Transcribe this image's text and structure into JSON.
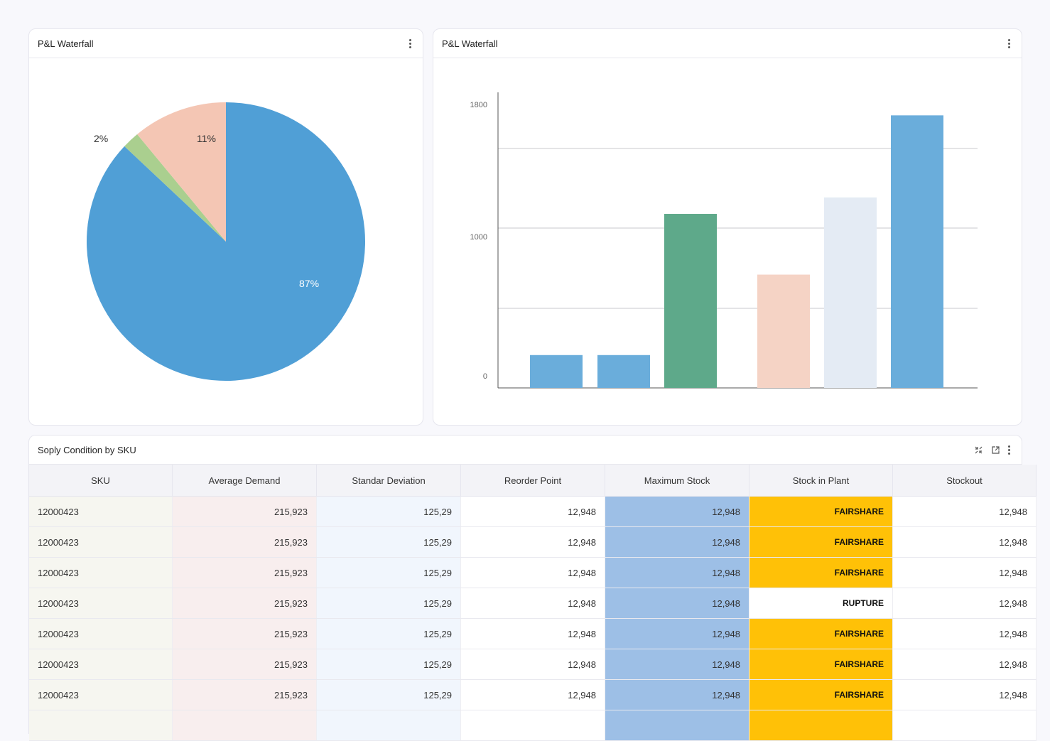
{
  "pie_card": {
    "title": "P&L Waterfall",
    "chart_data": {
      "type": "pie",
      "slices": [
        {
          "label": "87%",
          "value": 87,
          "color": "#509fd6"
        },
        {
          "label": "2%",
          "value": 2,
          "color": "#aacf8f"
        },
        {
          "label": "11%",
          "value": 11,
          "color": "#f4c6b4"
        }
      ]
    }
  },
  "bar_card": {
    "title": "P&L Waterfall",
    "chart_data": {
      "type": "bar",
      "ylim": [
        0,
        1800
      ],
      "yticks": [
        "0",
        "1000",
        "1800"
      ],
      "values": [
        200,
        200,
        1060,
        690,
        1160,
        1660
      ],
      "colors": [
        "#6aaddb",
        "#6aaddb",
        "#5ea98a",
        "#f5d3c5",
        "#e4ebf4",
        "#6aaddb"
      ]
    }
  },
  "table_card": {
    "title": "Soply  Condition by SKU",
    "columns": [
      "SKU",
      "Average Demand",
      "Standar Deviation",
      "Reorder Point",
      "Maximum Stock",
      "Stock in Plant",
      "Stockout"
    ],
    "rows": [
      [
        "12000423",
        "215,923",
        "125,29",
        "12,948",
        "12,948",
        "FAIRSHARE",
        "12,948"
      ],
      [
        "12000423",
        "215,923",
        "125,29",
        "12,948",
        "12,948",
        "FAIRSHARE",
        "12,948"
      ],
      [
        "12000423",
        "215,923",
        "125,29",
        "12,948",
        "12,948",
        "FAIRSHARE",
        "12,948"
      ],
      [
        "12000423",
        "215,923",
        "125,29",
        "12,948",
        "12,948",
        "RUPTURE",
        "12,948"
      ],
      [
        "12000423",
        "215,923",
        "125,29",
        "12,948",
        "12,948",
        "FAIRSHARE",
        "12,948"
      ],
      [
        "12000423",
        "215,923",
        "125,29",
        "12,948",
        "12,948",
        "FAIRSHARE",
        "12,948"
      ],
      [
        "12000423",
        "215,923",
        "125,29",
        "12,948",
        "12,948",
        "FAIRSHARE",
        "12,948"
      ]
    ]
  },
  "icons": {
    "collapse": "collapse-icon",
    "external": "external-link-icon",
    "more": "more-vert-icon"
  }
}
